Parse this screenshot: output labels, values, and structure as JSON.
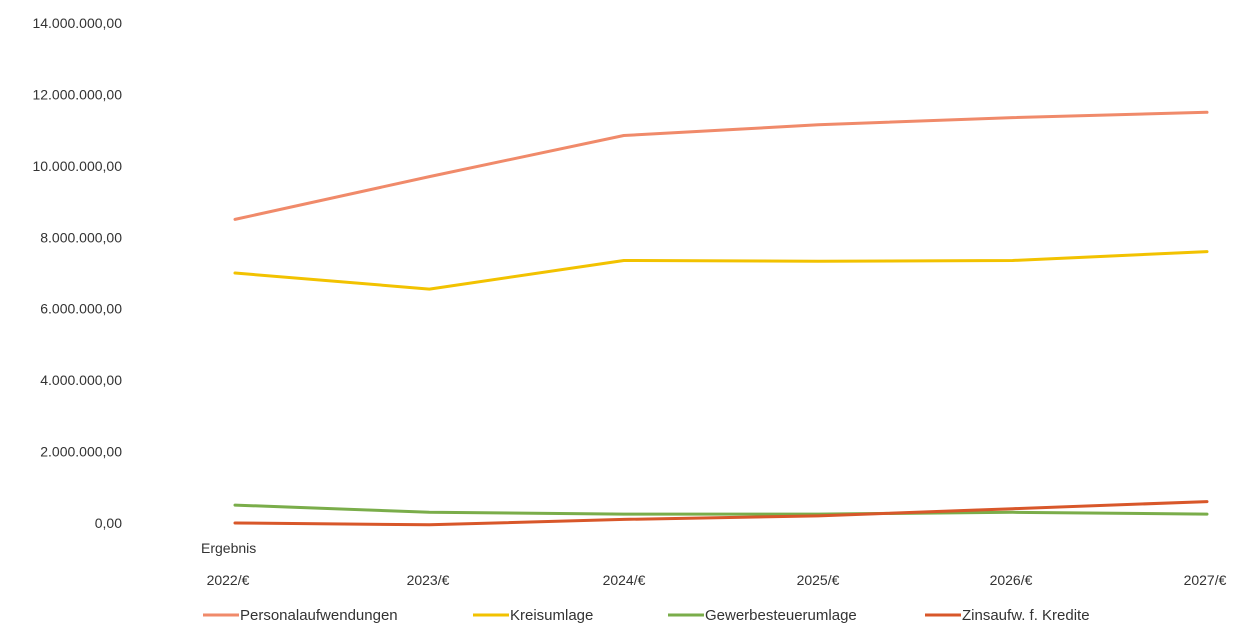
{
  "chart_data": {
    "type": "line",
    "categories": [
      "2022/€",
      "2023/€",
      "2024/€",
      "2025/€",
      "2026/€",
      "2027/€"
    ],
    "xlabel": "Ergebnis",
    "ylabel": "",
    "title": "",
    "ylim": [
      0,
      14000000
    ],
    "yticks": [
      0,
      2000000,
      4000000,
      6000000,
      8000000,
      10000000,
      12000000,
      14000000
    ],
    "ytick_labels": [
      "0,00",
      "2.000.000,00",
      "4.000.000,00",
      "6.000.000,00",
      "8.000.000,00",
      "10.000.000,00",
      "12.000.000,00",
      "14.000.000,00"
    ],
    "grid": false,
    "legend_position": "bottom",
    "series": [
      {
        "name": "Personalaufwendungen",
        "color": "#f08a6a",
        "values": [
          8500000,
          9700000,
          10850000,
          11150000,
          11350000,
          11500000
        ]
      },
      {
        "name": "Kreisumlage",
        "color": "#f2c200",
        "values": [
          7000000,
          6550000,
          7350000,
          7330000,
          7350000,
          7600000
        ]
      },
      {
        "name": "Gewerbesteuerumlage",
        "color": "#7aad4a",
        "values": [
          500000,
          300000,
          250000,
          250000,
          300000,
          250000
        ]
      },
      {
        "name": "Zinsaufw. f. Kredite",
        "color": "#d8572a",
        "values": [
          0,
          -50000,
          100000,
          200000,
          400000,
          600000
        ]
      }
    ]
  }
}
